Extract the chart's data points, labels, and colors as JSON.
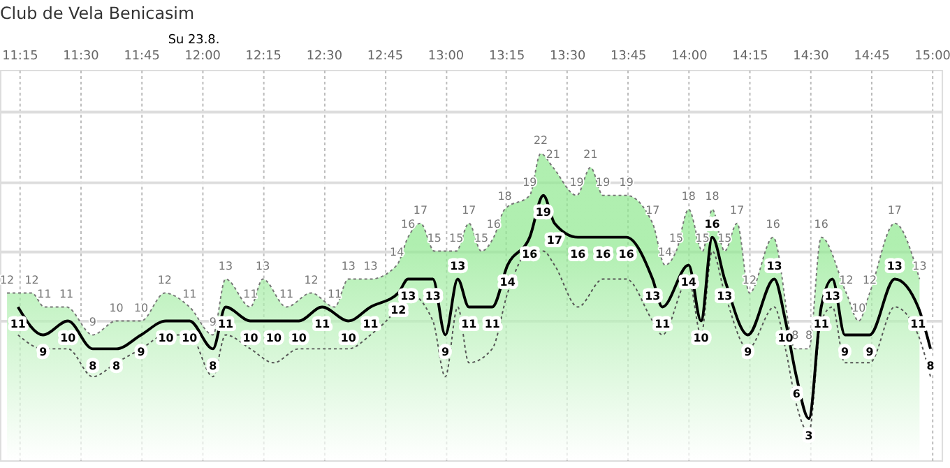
{
  "chart_data": {
    "type": "area",
    "title": "Club de Vela Benicasim",
    "annotations": [
      "Su 23.8."
    ],
    "xlim": [
      11.17,
      15.04
    ],
    "xticks": [
      {
        "value": 11.25,
        "label": "11:15"
      },
      {
        "value": 11.5,
        "label": "11:30"
      },
      {
        "value": 11.75,
        "label": "11:45"
      },
      {
        "value": 12.0,
        "label": "12:00"
      },
      {
        "value": 12.25,
        "label": "12:15"
      },
      {
        "value": 12.5,
        "label": "12:30"
      },
      {
        "value": 12.75,
        "label": "12:45"
      },
      {
        "value": 13.0,
        "label": "13:00"
      },
      {
        "value": 13.25,
        "label": "13:15"
      },
      {
        "value": 13.5,
        "label": "13:30"
      },
      {
        "value": 13.75,
        "label": "13:45"
      },
      {
        "value": 14.0,
        "label": "14:00"
      },
      {
        "value": 14.25,
        "label": "14:15"
      },
      {
        "value": 14.5,
        "label": "14:30"
      },
      {
        "value": 14.75,
        "label": "14:45"
      },
      {
        "value": 15.0,
        "label": "15:00"
      }
    ],
    "ylim": [
      0,
      28
    ],
    "yticks": [
      {
        "value": 10,
        "label": null
      },
      {
        "value": 15,
        "label": null
      },
      {
        "value": 20,
        "label": null
      },
      {
        "value": 25,
        "label": null
      }
    ],
    "tick_labels": "x",
    "grid": true,
    "series": [
      {
        "color": "#8ee88e",
        "line_style": "dotted",
        "x": [
          11.199,
          11.301,
          11.352,
          11.443,
          11.551,
          11.648,
          11.75,
          11.847,
          11.949,
          12.045,
          12.097,
          12.199,
          12.25,
          12.347,
          12.449,
          12.545,
          12.602,
          12.693,
          12.801,
          12.847,
          12.898,
          12.955,
          13.045,
          13.097,
          13.148,
          13.199,
          13.244,
          13.347,
          13.392,
          13.443,
          13.54,
          13.597,
          13.648,
          13.744,
          13.852,
          13.903,
          13.949,
          14.0,
          14.057,
          14.097,
          14.148,
          14.199,
          14.25,
          14.347,
          14.438,
          14.494,
          14.545,
          14.648,
          14.699,
          14.744,
          14.847,
          14.949
        ],
        "values": [
          12,
          12,
          11,
          11,
          9,
          10,
          10,
          12,
          11,
          9,
          13,
          11,
          13,
          11,
          12,
          11,
          13,
          13,
          14,
          16,
          17,
          15,
          15,
          17,
          15,
          16,
          18,
          19,
          22,
          21,
          19,
          21,
          19,
          19,
          17,
          14,
          15,
          18,
          15,
          18,
          15,
          17,
          12,
          16,
          8,
          8,
          16,
          12,
          10,
          12,
          17,
          13
        ],
        "value_labels": [
          "12",
          "12",
          "11",
          "11",
          "9",
          "10",
          "10",
          "12",
          "11",
          "9",
          "13",
          "11",
          "13",
          "11",
          "12",
          "11",
          "13",
          "13",
          "14",
          "16",
          "17",
          "15",
          "15",
          "17",
          "15",
          "16",
          "18",
          "19",
          "22",
          "21",
          "19",
          "21",
          "19",
          "19",
          "17",
          "14",
          "15",
          "18",
          "15",
          "18",
          "15",
          "17",
          "12",
          "16",
          "8",
          "8",
          "16",
          "12",
          "10",
          "12",
          "17",
          "13"
        ]
      },
      {
        "type": "line",
        "color": "#555555",
        "line_style": "dotted",
        "x": [
          11.244,
          11.347,
          11.449,
          11.551,
          11.648,
          11.75,
          11.852,
          11.949,
          12.045,
          12.097,
          12.199,
          12.295,
          12.398,
          12.494,
          12.602,
          12.693,
          12.807,
          12.847,
          12.949,
          13.0,
          13.051,
          13.097,
          13.193,
          13.256,
          13.347,
          13.403,
          13.449,
          13.545,
          13.648,
          13.744,
          13.852,
          13.892,
          14.0,
          14.051,
          14.097,
          14.148,
          14.244,
          14.352,
          14.398,
          14.443,
          14.494,
          14.545,
          14.591,
          14.642,
          14.744,
          14.847,
          14.943,
          14.994
        ],
        "values": [
          9,
          8,
          8,
          6,
          7,
          8,
          9,
          9,
          6,
          9,
          8,
          7,
          8,
          8,
          8,
          9,
          11,
          12,
          10,
          6,
          11,
          7,
          8,
          12,
          15,
          15,
          14,
          11,
          13,
          13,
          10,
          9,
          13,
          9,
          15,
          12,
          8,
          11,
          8,
          4,
          2,
          10,
          11,
          7,
          7,
          11,
          9,
          6
        ]
      },
      {
        "type": "line",
        "color": "#000000",
        "line_style": "solid",
        "x": [
          11.244,
          11.347,
          11.449,
          11.551,
          11.648,
          11.75,
          11.852,
          11.949,
          12.045,
          12.097,
          12.199,
          12.295,
          12.398,
          12.494,
          12.602,
          12.693,
          12.807,
          12.847,
          12.949,
          13.0,
          13.051,
          13.097,
          13.193,
          13.256,
          13.347,
          13.403,
          13.449,
          13.545,
          13.648,
          13.744,
          13.852,
          13.892,
          14.0,
          14.051,
          14.097,
          14.148,
          14.244,
          14.352,
          14.398,
          14.443,
          14.494,
          14.545,
          14.591,
          14.642,
          14.744,
          14.847,
          14.943,
          14.994
        ],
        "values": [
          11,
          9,
          10,
          8,
          8,
          9,
          10,
          10,
          8,
          11,
          10,
          10,
          10,
          11,
          10,
          11,
          12,
          13,
          13,
          9,
          13,
          11,
          11,
          14,
          16,
          19,
          17,
          16,
          16,
          16,
          13,
          11,
          14,
          10,
          16,
          13,
          9,
          13,
          10,
          6,
          3,
          11,
          13,
          9,
          9,
          13,
          11,
          8
        ],
        "value_labels": [
          "11",
          "9",
          "10",
          "8",
          "8",
          "9",
          "10",
          "10",
          "8",
          "11",
          "10",
          "10",
          "10",
          "11",
          "10",
          "11",
          "12",
          "13",
          "13",
          "9",
          "13",
          "11",
          "11",
          "14",
          "16",
          "19",
          "17",
          "16",
          "16",
          "16",
          "13",
          "11",
          "14",
          "10",
          "16",
          "13",
          "9",
          "13",
          "10",
          "6",
          "3",
          "11",
          "13",
          "9",
          "9",
          "13",
          "11",
          "8"
        ]
      }
    ]
  }
}
